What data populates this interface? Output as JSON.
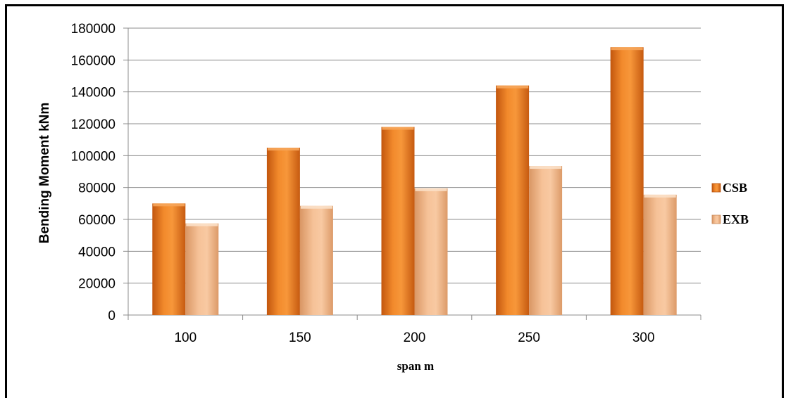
{
  "chart_data": {
    "type": "bar",
    "title": "",
    "xlabel": "span m",
    "ylabel": "Bending Moment kNm",
    "categories": [
      "100",
      "150",
      "200",
      "250",
      "300"
    ],
    "ylim": [
      0,
      180000
    ],
    "yticks": [
      "0",
      "20000",
      "40000",
      "60000",
      "80000",
      "100000",
      "120000",
      "140000",
      "160000",
      "180000"
    ],
    "grid": true,
    "legend_position": "right",
    "series": [
      {
        "name": "CSB",
        "color": "#e8761c",
        "values": [
          70000,
          105000,
          118000,
          144000,
          168000
        ]
      },
      {
        "name": "EXB",
        "color": "#f0b27e",
        "values": [
          57500,
          68500,
          79500,
          93500,
          75500
        ]
      }
    ]
  }
}
